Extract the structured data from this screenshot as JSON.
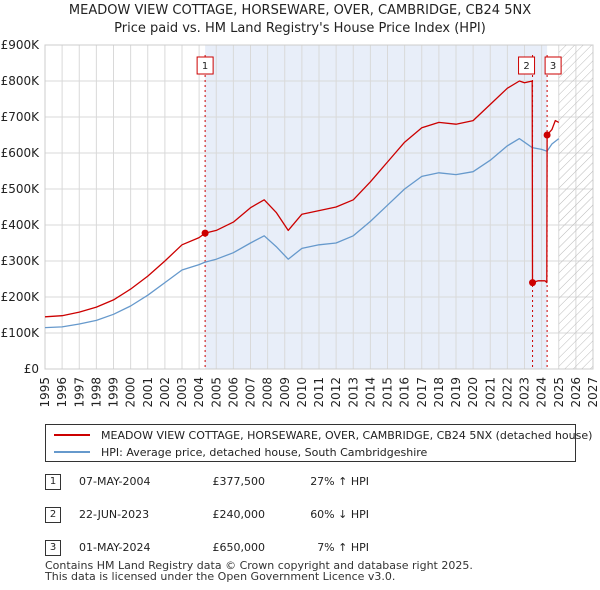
{
  "title_line1": "MEADOW VIEW COTTAGE, HORSEWARE, OVER, CAMBRIDGE, CB24 5NX",
  "title_line2": "Price paid vs. HM Land Registry's House Price Index (HPI)",
  "chart_data": {
    "type": "line",
    "xlim": [
      1995,
      2027
    ],
    "ylim": [
      0,
      900000
    ],
    "x_ticks": [
      1995,
      1996,
      1997,
      1998,
      1999,
      2000,
      2001,
      2002,
      2003,
      2004,
      2005,
      2006,
      2007,
      2008,
      2009,
      2010,
      2011,
      2012,
      2013,
      2014,
      2015,
      2016,
      2017,
      2018,
      2019,
      2020,
      2021,
      2022,
      2023,
      2024,
      2025,
      2026,
      2027
    ],
    "y_ticks": [
      0,
      100000,
      200000,
      300000,
      400000,
      500000,
      600000,
      700000,
      800000,
      900000
    ],
    "y_tick_labels": [
      "£0",
      "£100K",
      "£200K",
      "£300K",
      "£400K",
      "£500K",
      "£600K",
      "£700K",
      "£800K",
      "£900K"
    ],
    "grid": true,
    "hatched_from": 2025.0,
    "series": [
      {
        "name": "MEADOW VIEW COTTAGE, HORSEWARE, OVER, CAMBRIDGE, CB24 5NX (detached house)",
        "color": "#cc0000",
        "points": [
          [
            1995.0,
            145000
          ],
          [
            1996.0,
            148000
          ],
          [
            1997.0,
            158000
          ],
          [
            1998.0,
            172000
          ],
          [
            1999.0,
            192000
          ],
          [
            2000.0,
            222000
          ],
          [
            2001.0,
            258000
          ],
          [
            2002.0,
            300000
          ],
          [
            2003.0,
            345000
          ],
          [
            2004.0,
            365000
          ],
          [
            2004.35,
            377500
          ],
          [
            2005.0,
            385000
          ],
          [
            2006.0,
            408000
          ],
          [
            2007.0,
            448000
          ],
          [
            2007.8,
            470000
          ],
          [
            2008.5,
            435000
          ],
          [
            2009.2,
            385000
          ],
          [
            2010.0,
            430000
          ],
          [
            2011.0,
            440000
          ],
          [
            2012.0,
            450000
          ],
          [
            2013.0,
            470000
          ],
          [
            2014.0,
            520000
          ],
          [
            2015.0,
            575000
          ],
          [
            2016.0,
            630000
          ],
          [
            2017.0,
            670000
          ],
          [
            2018.0,
            685000
          ],
          [
            2019.0,
            680000
          ],
          [
            2020.0,
            690000
          ],
          [
            2021.0,
            735000
          ],
          [
            2022.0,
            780000
          ],
          [
            2022.7,
            800000
          ],
          [
            2023.0,
            795000
          ],
          [
            2023.45,
            800000
          ],
          [
            2023.47,
            240000
          ],
          [
            2023.8,
            245000
          ],
          [
            2024.2,
            245000
          ],
          [
            2024.3,
            240000
          ],
          [
            2024.32,
            650000
          ],
          [
            2024.6,
            665000
          ],
          [
            2024.8,
            690000
          ],
          [
            2025.0,
            685000
          ]
        ]
      },
      {
        "name": "HPI: Average price, detached house, South Cambridgeshire",
        "color": "#6699cc",
        "points": [
          [
            1995.0,
            115000
          ],
          [
            1996.0,
            117000
          ],
          [
            1997.0,
            125000
          ],
          [
            1998.0,
            135000
          ],
          [
            1999.0,
            152000
          ],
          [
            2000.0,
            175000
          ],
          [
            2001.0,
            205000
          ],
          [
            2002.0,
            240000
          ],
          [
            2003.0,
            275000
          ],
          [
            2004.0,
            290000
          ],
          [
            2004.35,
            297000
          ],
          [
            2005.0,
            305000
          ],
          [
            2006.0,
            323000
          ],
          [
            2007.0,
            350000
          ],
          [
            2007.8,
            370000
          ],
          [
            2008.5,
            340000
          ],
          [
            2009.2,
            305000
          ],
          [
            2010.0,
            335000
          ],
          [
            2011.0,
            345000
          ],
          [
            2012.0,
            350000
          ],
          [
            2013.0,
            370000
          ],
          [
            2014.0,
            410000
          ],
          [
            2015.0,
            455000
          ],
          [
            2016.0,
            500000
          ],
          [
            2017.0,
            535000
          ],
          [
            2018.0,
            545000
          ],
          [
            2019.0,
            540000
          ],
          [
            2020.0,
            548000
          ],
          [
            2021.0,
            580000
          ],
          [
            2022.0,
            620000
          ],
          [
            2022.7,
            640000
          ],
          [
            2023.0,
            630000
          ],
          [
            2023.45,
            615000
          ],
          [
            2024.0,
            610000
          ],
          [
            2024.32,
            605000
          ],
          [
            2024.6,
            625000
          ],
          [
            2025.0,
            640000
          ]
        ]
      }
    ],
    "events": [
      {
        "id": "1",
        "x": 2004.35,
        "price": 377500
      },
      {
        "id": "2",
        "x": 2023.47,
        "price": 240000
      },
      {
        "id": "3",
        "x": 2024.32,
        "price": 650000
      }
    ]
  },
  "legend": {
    "items": [
      {
        "label": "MEADOW VIEW COTTAGE, HORSEWARE, OVER, CAMBRIDGE, CB24 5NX (detached house)",
        "color": "#cc0000"
      },
      {
        "label": "HPI: Average price, detached house, South Cambridgeshire",
        "color": "#6699cc"
      }
    ]
  },
  "events_table": [
    {
      "num": "1",
      "date": "07-MAY-2004",
      "price": "£377,500",
      "hpi": "27% ↑ HPI"
    },
    {
      "num": "2",
      "date": "22-JUN-2023",
      "price": "£240,000",
      "hpi": "60% ↓ HPI"
    },
    {
      "num": "3",
      "date": "01-MAY-2024",
      "price": "£650,000",
      "hpi": "7% ↑ HPI"
    }
  ],
  "footer_line1": "Contains HM Land Registry data © Crown copyright and database right 2025.",
  "footer_line2": "This data is licensed under the Open Government Licence v3.0."
}
